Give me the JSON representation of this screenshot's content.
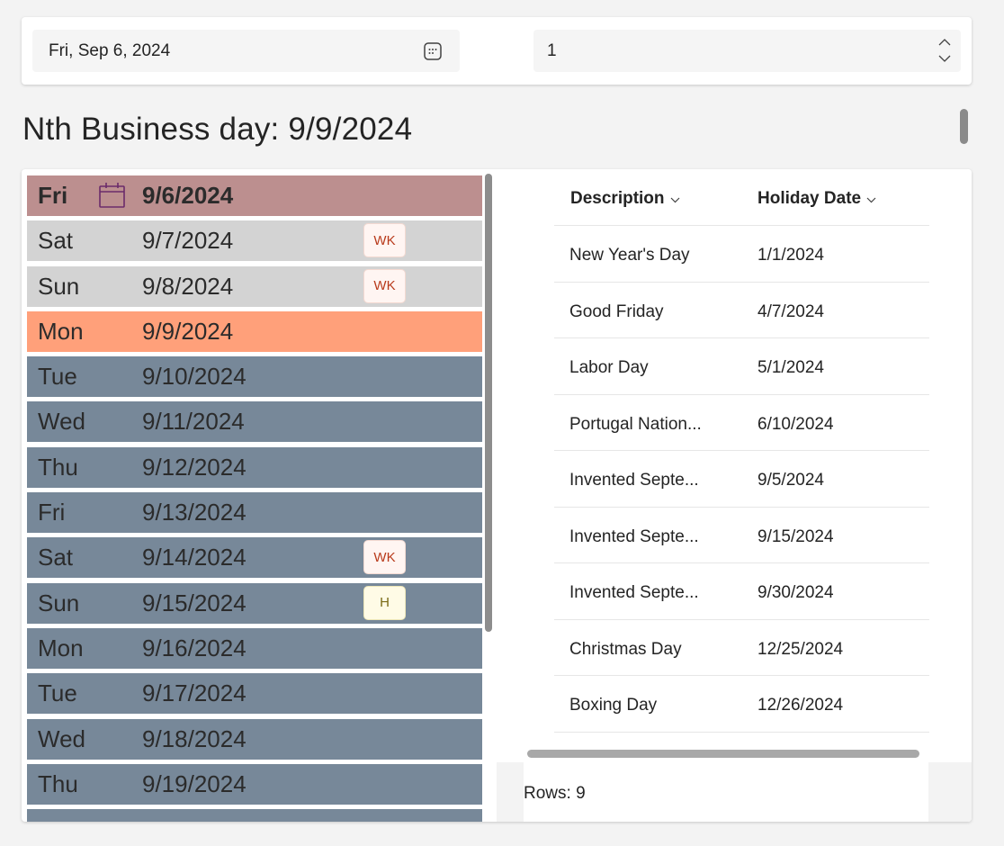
{
  "controls": {
    "date_value": "Fri, Sep 6, 2024",
    "number_value": "1"
  },
  "heading": "Nth Business day: 9/9/2024",
  "days": [
    {
      "day": "Fri",
      "date": "9/6/2024",
      "state": "selected",
      "badge": ""
    },
    {
      "day": "Sat",
      "date": "9/7/2024",
      "state": "weekend",
      "badge": "WK"
    },
    {
      "day": "Sun",
      "date": "9/8/2024",
      "state": "weekend",
      "badge": "WK"
    },
    {
      "day": "Mon",
      "date": "9/9/2024",
      "state": "result",
      "badge": ""
    },
    {
      "day": "Tue",
      "date": "9/10/2024",
      "state": "normal",
      "badge": ""
    },
    {
      "day": "Wed",
      "date": "9/11/2024",
      "state": "normal",
      "badge": ""
    },
    {
      "day": "Thu",
      "date": "9/12/2024",
      "state": "normal",
      "badge": ""
    },
    {
      "day": "Fri",
      "date": "9/13/2024",
      "state": "normal",
      "badge": ""
    },
    {
      "day": "Sat",
      "date": "9/14/2024",
      "state": "normal",
      "badge": "WK"
    },
    {
      "day": "Sun",
      "date": "9/15/2024",
      "state": "normal",
      "badge": "H"
    },
    {
      "day": "Mon",
      "date": "9/16/2024",
      "state": "normal",
      "badge": ""
    },
    {
      "day": "Tue",
      "date": "9/17/2024",
      "state": "normal",
      "badge": ""
    },
    {
      "day": "Wed",
      "date": "9/18/2024",
      "state": "normal",
      "badge": ""
    },
    {
      "day": "Thu",
      "date": "9/19/2024",
      "state": "normal",
      "badge": ""
    },
    {
      "day": "",
      "date": "",
      "state": "normal",
      "badge": ""
    }
  ],
  "holidays": {
    "columns": [
      "Description",
      "Holiday Date"
    ],
    "rows": [
      {
        "description": "New Year's Day",
        "date": "1/1/2024"
      },
      {
        "description": "Good Friday",
        "date": "4/7/2024"
      },
      {
        "description": "Labor Day",
        "date": "5/1/2024"
      },
      {
        "description": "Portugal Nation...",
        "date": "6/10/2024"
      },
      {
        "description": "Invented Septe...",
        "date": "9/5/2024"
      },
      {
        "description": "Invented Septe...",
        "date": "9/15/2024"
      },
      {
        "description": "Invented Septe...",
        "date": "9/30/2024"
      },
      {
        "description": "Christmas Day",
        "date": "12/25/2024"
      },
      {
        "description": "Boxing Day",
        "date": "12/26/2024"
      }
    ],
    "rows_label": "Rows: 9"
  },
  "colors": {
    "selected": "#bc8f8f",
    "weekend": "#d3d3d3",
    "result": "#ffa07a",
    "normal": "#778899"
  }
}
